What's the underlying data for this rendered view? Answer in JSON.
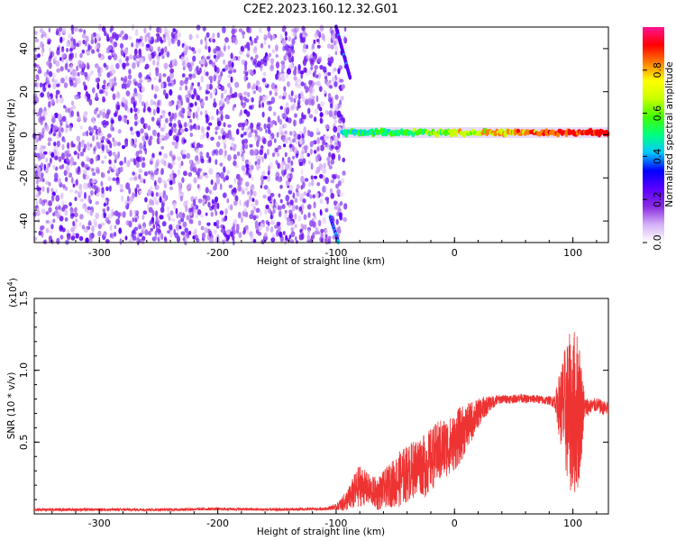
{
  "title": "C2E2.2023.160.12.32.G01",
  "chart_data": [
    {
      "type": "heatmap",
      "xlabel": "Height of straight line (km)",
      "ylabel": "Frequency (Hz)",
      "xlim": [
        -355,
        130
      ],
      "ylim": [
        -50,
        50
      ],
      "x_ticks": [
        -300,
        -200,
        -100,
        0,
        100
      ],
      "y_ticks": [
        -40,
        -20,
        0,
        20,
        40
      ],
      "colorbar": {
        "label": "Normalized spectral amplitude",
        "range": [
          0.0,
          1.0
        ],
        "ticks": [
          "0.0",
          "0.2",
          "0.4",
          "0.6",
          "0.8"
        ],
        "colors": [
          "#ffffff",
          "#d4b2f8",
          "#8a2be2",
          "#5a00ff",
          "#0000ff",
          "#00c8ff",
          "#00ff80",
          "#40ff00",
          "#c8ff00",
          "#ffff00",
          "#ff8000",
          "#ff0000",
          "#ff1493"
        ]
      },
      "features": {
        "broadband_noise_region_km": [
          -355,
          -100
        ],
        "signal_line_frequency_hz": 1,
        "signal_line_start_km": -95,
        "signal_line_end_km": 130,
        "diagonal_streak_top_km": [
          -100,
          -88
        ],
        "diagonal_streak_bottom_km": [
          -105,
          -98
        ]
      },
      "grid": false
    },
    {
      "type": "line",
      "xlabel": "Height of straight line (km)",
      "ylabel": "SNR (10 * v/v)",
      "scale_label": "(x10",
      "scale_exp": "4",
      "scale_close": ")",
      "xlim": [
        -355,
        130
      ],
      "ylim": [
        0,
        1.5
      ],
      "x_ticks": [
        -300,
        -200,
        -100,
        0,
        100
      ],
      "y_ticks": [
        "0.5",
        "1.0",
        "1.5"
      ],
      "series": [
        {
          "color": "#ee3333",
          "x": [
            -355,
            -300,
            -250,
            -200,
            -150,
            -110,
            -100,
            -95,
            -90,
            -85,
            -80,
            -75,
            -70,
            -65,
            -60,
            -55,
            -50,
            -45,
            -40,
            -35,
            -30,
            -25,
            -20,
            -15,
            -10,
            -5,
            0,
            5,
            10,
            15,
            20,
            25,
            30,
            35,
            40,
            45,
            50,
            55,
            60,
            65,
            70,
            75,
            80,
            85,
            90,
            95,
            100,
            105,
            110,
            115,
            120,
            125,
            130
          ],
          "y": [
            0.03,
            0.03,
            0.03,
            0.035,
            0.03,
            0.035,
            0.05,
            0.07,
            0.1,
            0.15,
            0.2,
            0.18,
            0.16,
            0.14,
            0.17,
            0.2,
            0.22,
            0.25,
            0.28,
            0.31,
            0.35,
            0.33,
            0.38,
            0.42,
            0.45,
            0.47,
            0.5,
            0.55,
            0.6,
            0.65,
            0.7,
            0.74,
            0.77,
            0.79,
            0.8,
            0.8,
            0.8,
            0.81,
            0.8,
            0.8,
            0.8,
            0.79,
            0.79,
            0.78,
            0.75,
            0.72,
            0.7,
            0.72,
            0.74,
            0.75,
            0.76,
            0.74,
            0.73
          ],
          "noise": [
            0.01,
            0.01,
            0.01,
            0.01,
            0.01,
            0.01,
            0.02,
            0.05,
            0.08,
            0.12,
            0.15,
            0.12,
            0.1,
            0.12,
            0.13,
            0.15,
            0.18,
            0.2,
            0.2,
            0.2,
            0.2,
            0.22,
            0.22,
            0.22,
            0.22,
            0.2,
            0.2,
            0.2,
            0.16,
            0.14,
            0.1,
            0.08,
            0.05,
            0.04,
            0.03,
            0.03,
            0.03,
            0.03,
            0.03,
            0.03,
            0.03,
            0.03,
            0.03,
            0.05,
            0.3,
            0.5,
            0.6,
            0.55,
            0.08,
            0.05,
            0.05,
            0.05,
            0.05
          ]
        }
      ],
      "grid": false
    }
  ]
}
